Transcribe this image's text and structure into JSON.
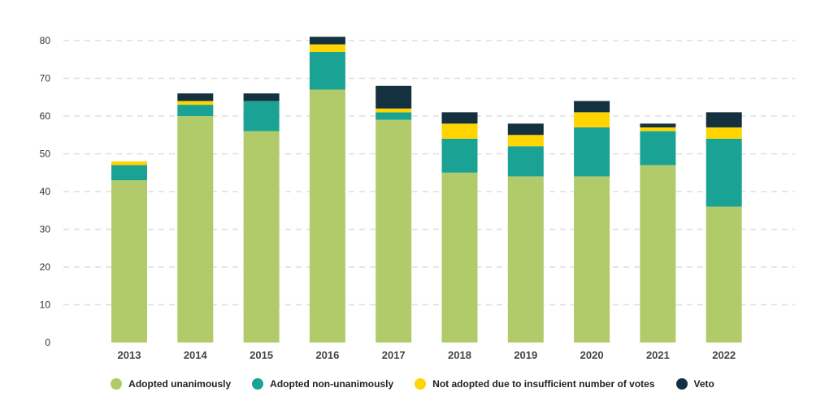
{
  "chart_data": {
    "type": "bar",
    "stacked": true,
    "categories": [
      "2013",
      "2014",
      "2015",
      "2016",
      "2017",
      "2018",
      "2019",
      "2020",
      "2021",
      "2022"
    ],
    "series": [
      {
        "name": "Adopted unanimously",
        "color": "#b1cb6b",
        "values": [
          43,
          60,
          56,
          67,
          59,
          45,
          44,
          44,
          47,
          36
        ]
      },
      {
        "name": "Adopted non-unanimously",
        "color": "#1aa395",
        "values": [
          4,
          3,
          8,
          10,
          2,
          9,
          8,
          13,
          9,
          18
        ]
      },
      {
        "name": "Not adopted due to insufficient number of votes",
        "color": "#ffd400",
        "values": [
          1,
          1,
          0,
          2,
          1,
          4,
          3,
          4,
          1,
          3
        ]
      },
      {
        "name": "Veto",
        "color": "#13313f",
        "values": [
          0,
          2,
          2,
          2,
          6,
          3,
          3,
          3,
          1,
          4
        ]
      }
    ],
    "yticks": [
      0,
      10,
      20,
      30,
      40,
      50,
      60,
      70,
      80
    ],
    "ylim": [
      0,
      80
    ],
    "grid": true,
    "legend_position": "bottom"
  }
}
